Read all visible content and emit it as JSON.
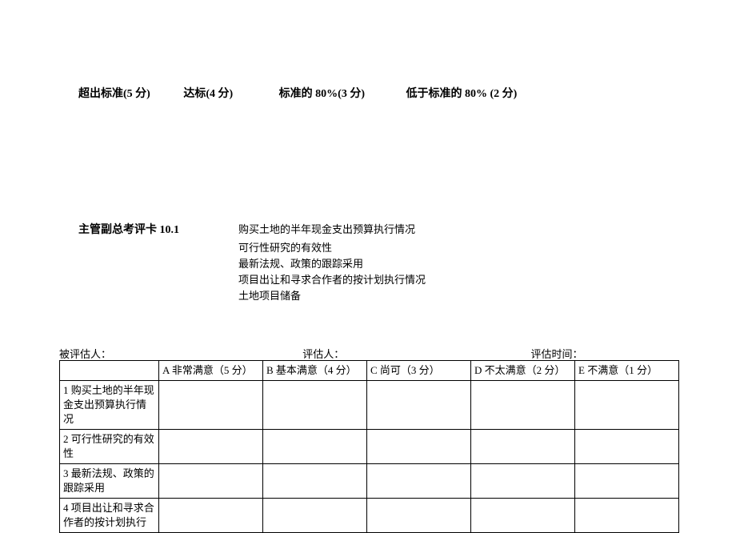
{
  "scoring": {
    "item1": "超出标准(5 分)",
    "item2": "达标(4 分)",
    "item3": "标准的 80%(3 分)",
    "item4": "低于标准的 80% (2 分)"
  },
  "section": {
    "title": "主管副总考评卡 10.1",
    "criteria": [
      "购买土地的半年现金支出预算执行情况",
      "可行性研究的有效性",
      "最新法规、政策的跟踪采用",
      "项目出让和寻求合作者的按计划执行情况",
      "土地项目储备"
    ]
  },
  "info": {
    "evaluated": "被评估人：",
    "evaluator": "评估人：",
    "time": "评估时间："
  },
  "table": {
    "headers": {
      "blank": "",
      "a": "A 非常满意（5 分）",
      "b": "B 基本满意（4 分）",
      "c": "C 尚可（3 分）",
      "d": "D 不太满意（2 分）",
      "e": "E 不满意（1 分）"
    },
    "rows": [
      "1 购买土地的半年现金支出预算执行情况",
      "2 可行性研究的有效性",
      "3 最新法规、政策的跟踪采用",
      "4 项目出让和寻求合作者的按计划执行"
    ]
  }
}
